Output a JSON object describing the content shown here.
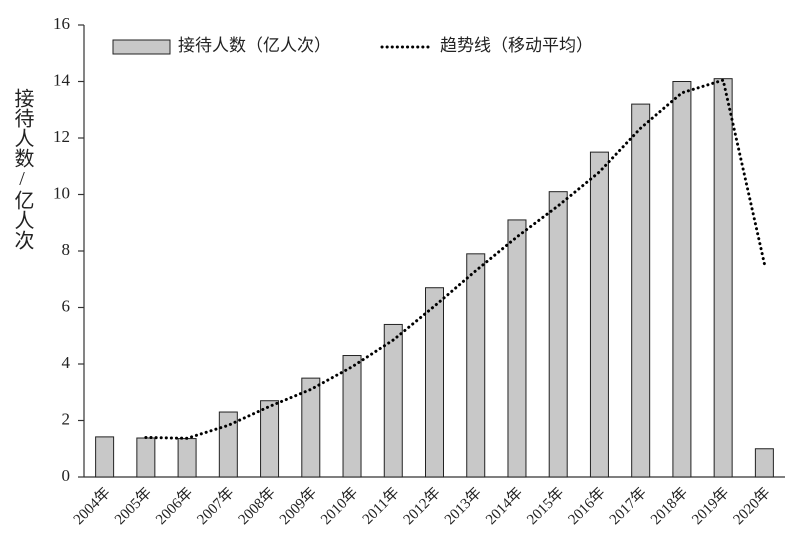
{
  "chart_data": {
    "type": "bar",
    "ylabel": "接待人数/亿人次",
    "categories": [
      "2004年",
      "2005年",
      "2006年",
      "2007年",
      "2008年",
      "2009年",
      "2010年",
      "2011年",
      "2012年",
      "2013年",
      "2014年",
      "2015年",
      "2016年",
      "2017年",
      "2018年",
      "2019年",
      "2020年"
    ],
    "series": [
      {
        "name": "接待人数（亿人次）",
        "type": "bar",
        "color": "#c8c8c8",
        "values": [
          1.42,
          1.38,
          1.36,
          2.3,
          2.7,
          3.5,
          4.3,
          5.4,
          6.7,
          7.9,
          9.1,
          10.1,
          11.5,
          13.2,
          14.0,
          14.1,
          1.0
        ]
      },
      {
        "name": "趋势线（移动平均）",
        "type": "line",
        "color": "#000000",
        "values": [
          null,
          1.4,
          1.37,
          1.83,
          2.5,
          3.1,
          3.9,
          4.85,
          6.05,
          7.3,
          8.5,
          9.6,
          10.8,
          12.35,
          13.6,
          14.05,
          7.55
        ]
      }
    ],
    "ylim": [
      0,
      16
    ],
    "yticks": [
      0,
      2,
      4,
      6,
      8,
      10,
      12,
      14,
      16
    ],
    "grid": false
  }
}
